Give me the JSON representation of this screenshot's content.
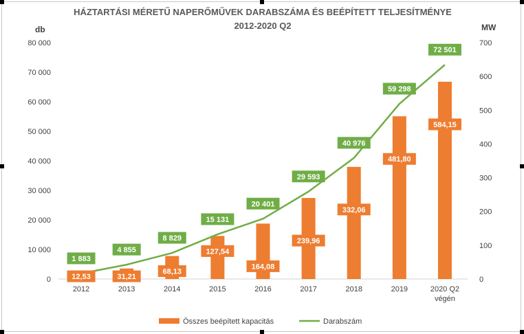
{
  "chart_data": {
    "type": "bar+line",
    "title": "HÁZTARTÁSI MÉRETŰ NAPERŐMŰVEK DARABSZÁMA ÉS BEÉPÍTETT TELJESÍTMÉNYE",
    "subtitle": "2012-2020 Q2",
    "categories": [
      [
        "2012"
      ],
      [
        "2013"
      ],
      [
        "2014"
      ],
      [
        "2015"
      ],
      [
        "2016"
      ],
      [
        "2017"
      ],
      [
        "2018"
      ],
      [
        "2019"
      ],
      [
        "2020 Q2",
        "végén"
      ]
    ],
    "left_axis": {
      "unit": "db",
      "range": [
        0,
        80000
      ],
      "ticks": [
        0,
        10000,
        20000,
        30000,
        40000,
        50000,
        60000,
        70000,
        80000
      ],
      "tick_labels": [
        "0",
        "10 000",
        "20 000",
        "30 000",
        "40 000",
        "50 000",
        "60 000",
        "70 000",
        "80 000"
      ]
    },
    "right_axis": {
      "unit": "MW",
      "range": [
        0,
        700
      ],
      "ticks": [
        0,
        100,
        200,
        300,
        400,
        500,
        600,
        700
      ],
      "tick_labels": [
        "0",
        "100",
        "200",
        "300",
        "400",
        "500",
        "600",
        "700"
      ]
    },
    "series": [
      {
        "name": "Összes beépített kapacitás",
        "kind": "bar",
        "axis": "right",
        "color": "#ED7D31",
        "values": [
          12.53,
          31.21,
          68.13,
          127.54,
          164.08,
          239.96,
          332.06,
          481.8,
          584.15
        ],
        "labels": [
          "12,53",
          "31,21",
          "68,13",
          "127,54",
          "164,08",
          "239,96",
          "332,06",
          "481,80",
          "584,15"
        ]
      },
      {
        "name": "Darabszám",
        "kind": "line",
        "axis": "left",
        "color": "#70AD47",
        "values": [
          1883,
          4855,
          8829,
          15131,
          20401,
          29593,
          40976,
          59298,
          72501
        ],
        "labels": [
          "1 883",
          "4 855",
          "8 829",
          "15 131",
          "20 401",
          "29 593",
          "40 976",
          "59 298",
          "72 501"
        ]
      }
    ],
    "legend": {
      "position": "bottom"
    },
    "grid": false
  }
}
